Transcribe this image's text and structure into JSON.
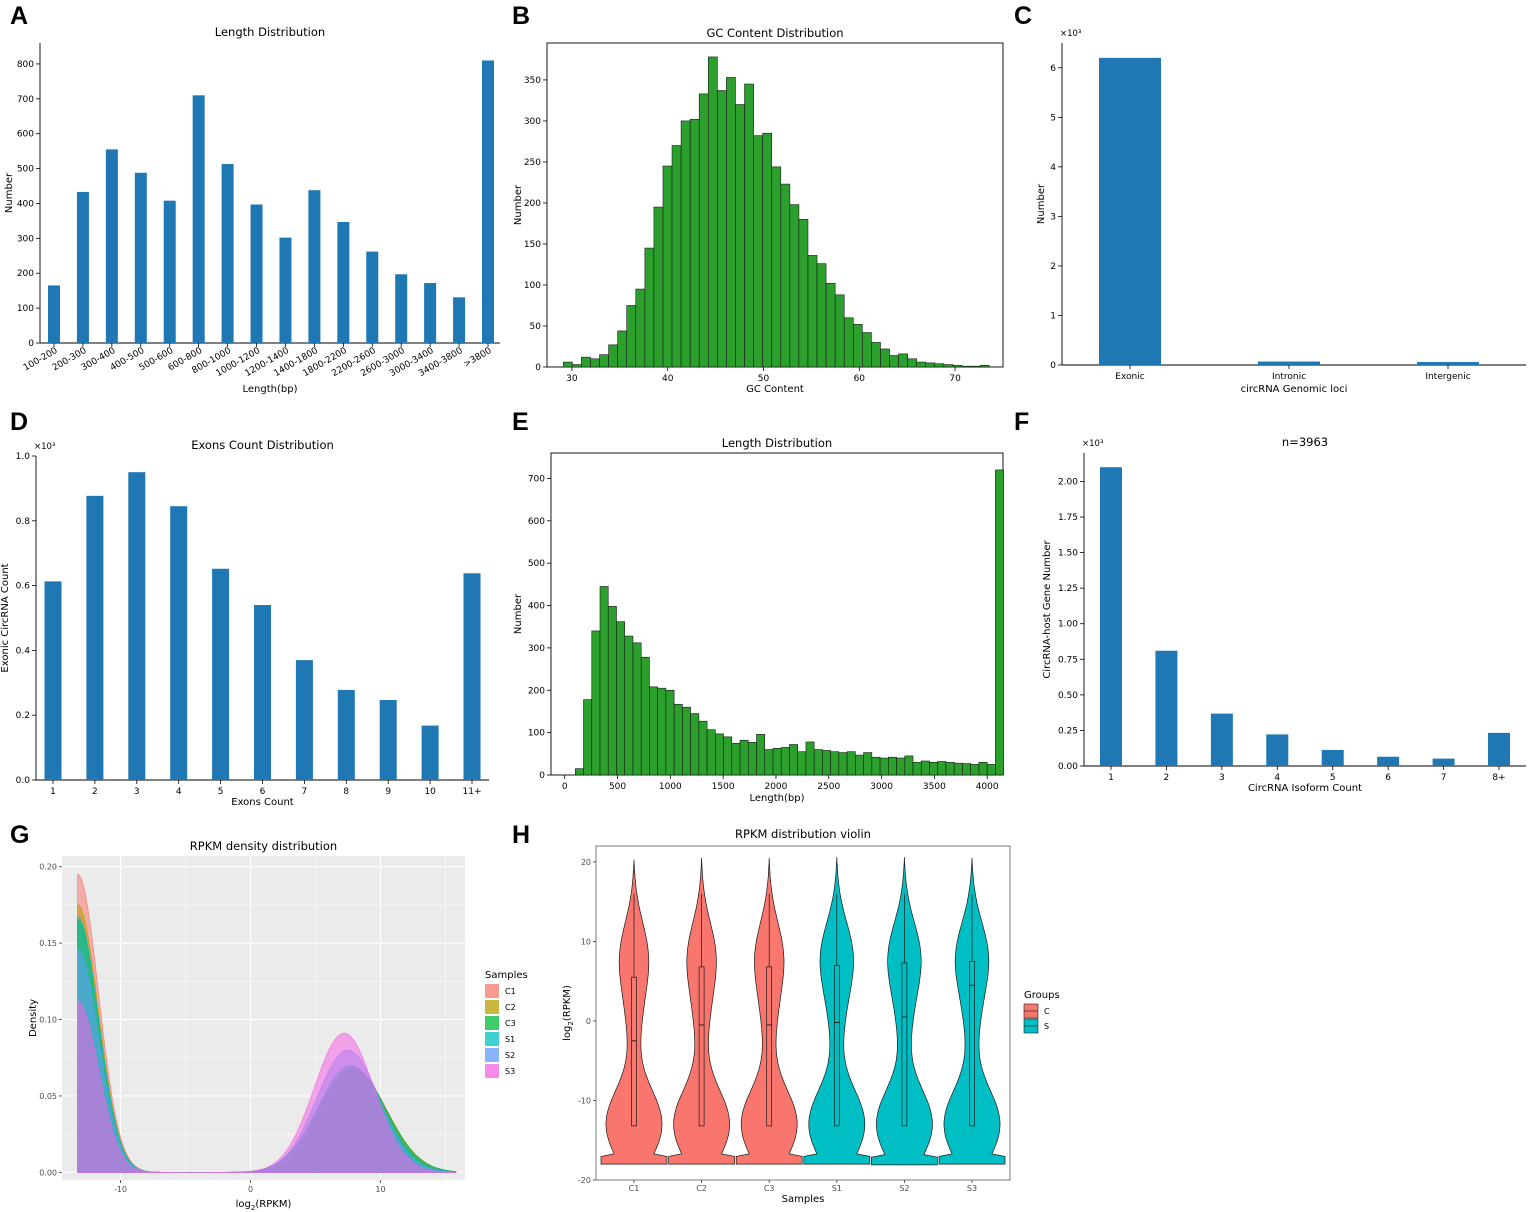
{
  "panel_letters": [
    "A",
    "B",
    "C",
    "D",
    "E",
    "F",
    "G",
    "H"
  ],
  "colors": {
    "blue": "#1f77b4",
    "green": "#2ca02c",
    "red": "#f8766d",
    "teal": "#00bfc4",
    "axis": "#000000",
    "grid": "#ebebeb",
    "border": "#999999"
  },
  "chart_data": [
    {
      "id": "A",
      "type": "bar",
      "title": "Length Distribution",
      "xlabel": "Length(bp)",
      "ylabel": "Number",
      "categories": [
        "100-200",
        "200-300",
        "300-400",
        "400-500",
        "500-600",
        "600-800",
        "800-1000",
        "1000-1200",
        "1200-1400",
        "1400-1800",
        "1800-2200",
        "2200-2600",
        "2600-3000",
        "3000-3400",
        "3400-3800",
        ">3800"
      ],
      "values": [
        165,
        433,
        555,
        488,
        408,
        710,
        513,
        397,
        302,
        438,
        347,
        262,
        197,
        172,
        131,
        810
      ],
      "ylim": [
        0,
        860
      ],
      "yticks": [
        0,
        100,
        200,
        300,
        400,
        500,
        600,
        700,
        800
      ],
      "color": "#1f77b4"
    },
    {
      "id": "B",
      "type": "bar",
      "title": "GC Content Distribution",
      "xlabel": "GC Content",
      "ylabel": "Number",
      "bin_start": 29.1,
      "bin_width": 0.946,
      "values": [
        6,
        3,
        12,
        10,
        15,
        27,
        44,
        75,
        95,
        145,
        195,
        245,
        270,
        300,
        302,
        333,
        378,
        337,
        353,
        320,
        345,
        282,
        285,
        244,
        223,
        198,
        180,
        136,
        126,
        102,
        88,
        60,
        52,
        42,
        30,
        22,
        14,
        16,
        10,
        6,
        5,
        4,
        3,
        2,
        1,
        1,
        2
      ],
      "xlim": [
        27.4,
        75.0
      ],
      "xticks": [
        30,
        40,
        50,
        60,
        70
      ],
      "ylim": [
        0,
        395
      ],
      "yticks": [
        0,
        50,
        100,
        150,
        200,
        250,
        300,
        350
      ],
      "color": "#2ca02c"
    },
    {
      "id": "C",
      "type": "bar",
      "title": "",
      "xlabel": "circRNA Genomic loci",
      "ylabel": "Number",
      "sci_label": "×10³",
      "categories": [
        "Exonic",
        "Intronic",
        "Intergenic"
      ],
      "values": [
        6.2,
        0.07,
        0.06
      ],
      "ylim": [
        0,
        6.5
      ],
      "yticks": [
        0,
        1,
        2,
        3,
        4,
        5,
        6
      ],
      "color": "#1f77b4"
    },
    {
      "id": "D",
      "type": "bar",
      "title": "Exons Count Distribution",
      "xlabel": "Exons Count",
      "ylabel": "Exonic CircRNA Count",
      "sci_label": "×10³",
      "categories": [
        "1",
        "2",
        "3",
        "4",
        "5",
        "6",
        "7",
        "8",
        "9",
        "10",
        "11+"
      ],
      "values": [
        0.613,
        0.877,
        0.95,
        0.845,
        0.652,
        0.54,
        0.37,
        0.278,
        0.247,
        0.168,
        0.638
      ],
      "ylim": [
        0,
        1.0
      ],
      "yticks": [
        "0.0",
        "0.2",
        "0.4",
        "0.6",
        "0.8",
        "1.0"
      ],
      "color": "#1f77b4"
    },
    {
      "id": "E",
      "type": "bar",
      "title": "Length Distribution",
      "xlabel": "Length(bp)",
      "ylabel": "Number",
      "bin_start": 100,
      "bin_width": 78,
      "values": [
        15,
        178,
        340,
        445,
        398,
        362,
        328,
        312,
        278,
        208,
        205,
        200,
        167,
        160,
        145,
        127,
        107,
        97,
        90,
        75,
        82,
        77,
        96,
        60,
        63,
        65,
        72,
        55,
        78,
        60,
        58,
        55,
        53,
        55,
        47,
        53,
        42,
        40,
        42,
        40,
        45,
        30,
        33,
        30,
        32,
        30,
        28,
        27,
        25,
        30,
        25,
        720
      ],
      "xlim": [
        -130,
        4150
      ],
      "xticks": [
        0,
        500,
        1000,
        1500,
        2000,
        2500,
        3000,
        3500,
        4000
      ],
      "ylim": [
        0,
        760
      ],
      "yticks": [
        0,
        100,
        200,
        300,
        400,
        500,
        600,
        700
      ],
      "color": "#2ca02c"
    },
    {
      "id": "F",
      "type": "bar",
      "title": "n=3963",
      "xlabel": "CircRNA Isoform Count",
      "ylabel": "CircRNA-host Gene Number",
      "sci_label": "×10³",
      "categories": [
        "1",
        "2",
        "3",
        "4",
        "5",
        "6",
        "7",
        "8+"
      ],
      "values": [
        2.1,
        0.81,
        0.368,
        0.222,
        0.113,
        0.065,
        0.052,
        0.233
      ],
      "ylim": [
        0,
        2.2
      ],
      "yticks": [
        "0.00",
        "0.25",
        "0.50",
        "0.75",
        "1.00",
        "1.25",
        "1.50",
        "1.75",
        "2.00"
      ],
      "color": "#1f77b4"
    },
    {
      "id": "G",
      "type": "area",
      "title": "RPKM density distribution",
      "xlabel": "log2(RPKM)",
      "ylabel": "Density",
      "xlim": [
        -14.5,
        16.5
      ],
      "ylim": [
        -0.005,
        0.207
      ],
      "xticks": [
        -10,
        0,
        10
      ],
      "yticks": [
        "0.00",
        "0.05",
        "0.10",
        "0.15",
        "0.20"
      ],
      "legend_title": "Samples",
      "series": [
        {
          "name": "C1",
          "color": "#f8766d",
          "left_peak": 0.195,
          "right_peak": 0.067,
          "right_mu": 8.0,
          "right_sigma": 2.5
        },
        {
          "name": "C2",
          "color": "#b79f00",
          "left_peak": 0.175,
          "right_peak": 0.068,
          "right_mu": 7.9,
          "right_sigma": 2.5
        },
        {
          "name": "C3",
          "color": "#00ba38",
          "left_peak": 0.165,
          "right_peak": 0.069,
          "right_mu": 7.8,
          "right_sigma": 2.6
        },
        {
          "name": "S1",
          "color": "#00bfc4",
          "left_peak": 0.167,
          "right_peak": 0.07,
          "right_mu": 7.7,
          "right_sigma": 2.5
        },
        {
          "name": "S2",
          "color": "#619cff",
          "left_peak": 0.146,
          "right_peak": 0.08,
          "right_mu": 7.5,
          "right_sigma": 2.4
        },
        {
          "name": "S3",
          "color": "#f564e3",
          "left_peak": 0.112,
          "right_peak": 0.091,
          "right_mu": 7.2,
          "right_sigma": 2.3
        }
      ]
    },
    {
      "id": "H",
      "type": "violin",
      "title": "RPKM distribution violin",
      "xlabel": "Samples",
      "ylabel": "log2(RPKM)",
      "categories": [
        "C1",
        "C2",
        "C3",
        "S1",
        "S2",
        "S3"
      ],
      "groups": [
        "C",
        "C",
        "C",
        "S",
        "S",
        "S"
      ],
      "ylim": [
        -20,
        22
      ],
      "yticks": [
        -20,
        -10,
        0,
        10,
        20
      ],
      "y_min": [
        -18,
        -18,
        -18,
        -18,
        -18.1,
        -18
      ],
      "y_max": [
        20.3,
        20.5,
        20.5,
        20.6,
        20.6,
        20.5
      ],
      "median": [
        -2.5,
        -0.5,
        -0.5,
        -0.2,
        0.5,
        4.5
      ],
      "q1": [
        -13.2,
        -13.2,
        -13.2,
        -13.2,
        -13.2,
        -13.2
      ],
      "q3": [
        5.5,
        6.8,
        6.8,
        7.0,
        7.3,
        7.5
      ],
      "whisker_high": [
        16,
        16,
        16,
        16,
        16,
        16
      ],
      "legend_title": "Groups",
      "legend": [
        {
          "name": "C",
          "color": "#f8766d"
        },
        {
          "name": "S",
          "color": "#00bfc4"
        }
      ]
    }
  ]
}
